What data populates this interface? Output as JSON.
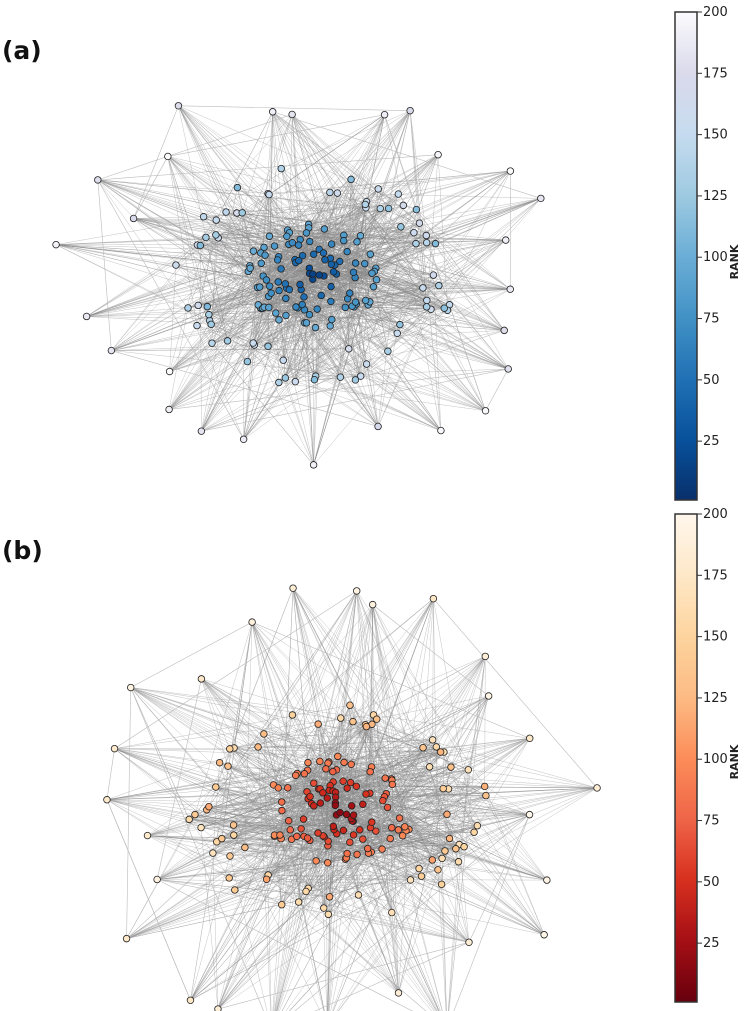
{
  "panels": [
    {
      "label": "(a)",
      "colorbar": {
        "title": "RANK",
        "ticks": [
          "25",
          "50",
          "75",
          "100",
          "125",
          "150",
          "175",
          "200"
        ],
        "colors": [
          "#08306b",
          "#08519c",
          "#2171b5",
          "#4292c6",
          "#6baed6",
          "#9ecae1",
          "#c6dbef",
          "#dadaeb",
          "#fcfbfd"
        ]
      }
    },
    {
      "label": "(b)",
      "colorbar": {
        "title": "RANK",
        "ticks": [
          "25",
          "50",
          "75",
          "100",
          "125",
          "150",
          "175",
          "200"
        ],
        "colors": [
          "#67000d",
          "#a50f15",
          "#d7301f",
          "#ef6548",
          "#fc8d59",
          "#fdbb84",
          "#fdd49e",
          "#fee8c8",
          "#fff7ec"
        ]
      }
    }
  ]
}
